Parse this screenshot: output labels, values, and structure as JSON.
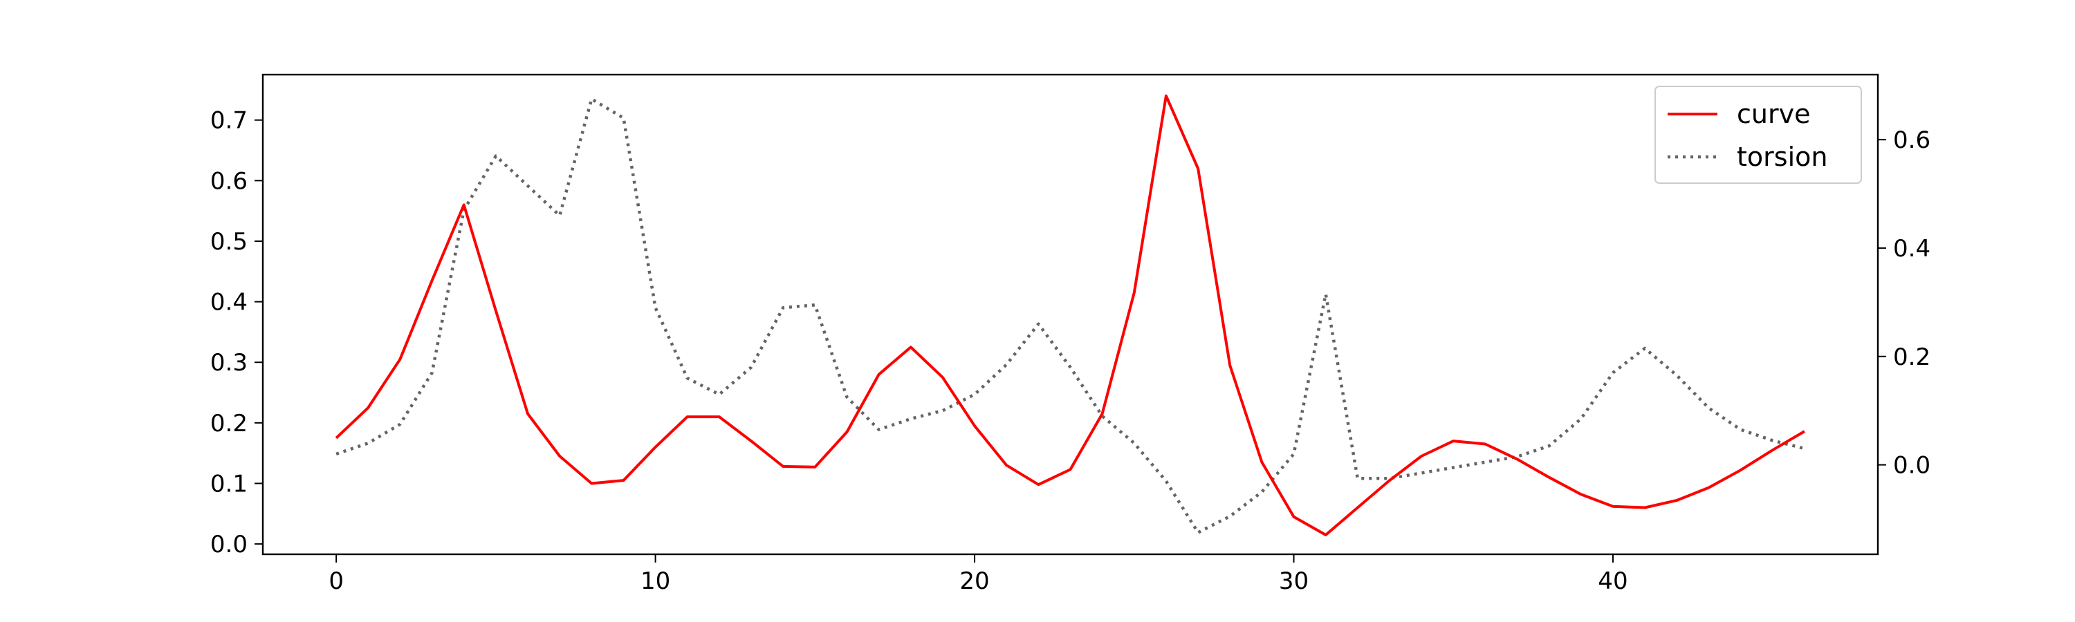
{
  "chart_data": {
    "type": "line",
    "x": [
      0,
      1,
      2,
      3,
      4,
      5,
      6,
      7,
      8,
      9,
      10,
      11,
      12,
      13,
      14,
      15,
      16,
      17,
      18,
      19,
      20,
      21,
      22,
      23,
      24,
      25,
      26,
      27,
      28,
      29,
      30,
      31,
      32,
      33,
      34,
      35,
      36,
      37,
      38,
      39,
      40,
      41,
      42,
      43,
      44,
      45,
      46
    ],
    "xlim": [
      -2.3,
      48.3
    ],
    "xticks": [
      0,
      10,
      20,
      30,
      40
    ],
    "ylim": [
      -0.017,
      0.775
    ],
    "yticks": [
      0.0,
      0.1,
      0.2,
      0.3,
      0.4,
      0.5,
      0.6,
      0.7
    ],
    "y2lim": [
      -0.165,
      0.72
    ],
    "y2ticks": [
      0.0,
      0.2,
      0.4,
      0.6
    ],
    "legend_position": "top-right",
    "series": [
      {
        "name": "curve",
        "axis": "left",
        "color": "#ff0000",
        "style": "solid",
        "values": [
          0.175,
          0.225,
          0.305,
          0.435,
          0.56,
          0.385,
          0.215,
          0.145,
          0.1,
          0.105,
          0.16,
          0.21,
          0.21,
          0.17,
          0.128,
          0.127,
          0.185,
          0.28,
          0.325,
          0.275,
          0.195,
          0.13,
          0.098,
          0.123,
          0.215,
          0.415,
          0.74,
          0.62,
          0.295,
          0.135,
          0.045,
          0.015,
          0.06,
          0.105,
          0.145,
          0.17,
          0.165,
          0.14,
          0.11,
          0.082,
          0.062,
          0.06,
          0.072,
          0.093,
          0.122,
          0.155,
          0.186
        ]
      },
      {
        "name": "torsion",
        "axis": "right",
        "color": "#646464",
        "style": "dotted",
        "values": [
          0.02,
          0.04,
          0.075,
          0.17,
          0.47,
          0.57,
          0.515,
          0.46,
          0.675,
          0.64,
          0.29,
          0.16,
          0.13,
          0.18,
          0.29,
          0.295,
          0.125,
          0.065,
          0.085,
          0.1,
          0.13,
          0.185,
          0.26,
          0.18,
          0.09,
          0.04,
          -0.03,
          -0.125,
          -0.095,
          -0.05,
          0.02,
          0.315,
          -0.025,
          -0.025,
          -0.015,
          -0.005,
          0.005,
          0.015,
          0.035,
          0.085,
          0.17,
          0.215,
          0.165,
          0.105,
          0.065,
          0.045,
          0.03
        ]
      }
    ]
  }
}
